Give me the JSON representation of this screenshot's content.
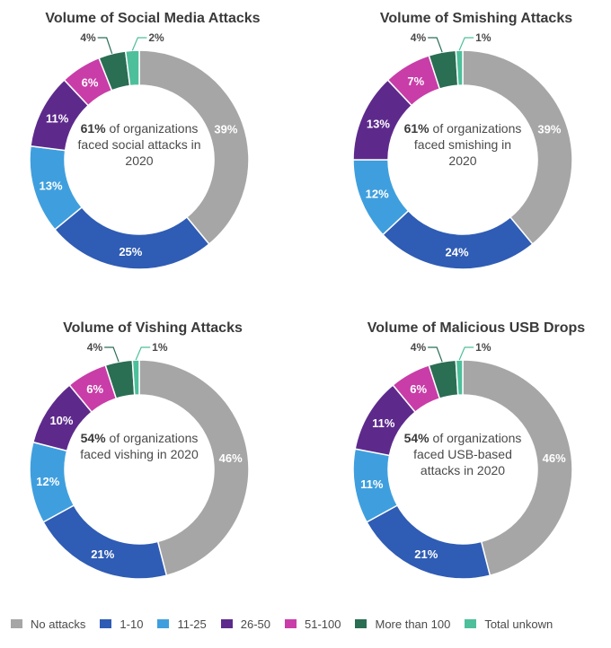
{
  "colors": {
    "No attacks": "#a6a6a6",
    "1-10": "#2f5cb4",
    "11-25": "#3f9fde",
    "26-50": "#5d2a8c",
    "51-100": "#c93da8",
    "More than 100": "#2a6e54",
    "Total unkown": "#4dbf9b"
  },
  "chart_data": [
    {
      "type": "pie",
      "title": "Volume of Social Media Attacks",
      "categories": [
        "No attacks",
        "1-10",
        "11-25",
        "26-50",
        "51-100",
        "More than 100",
        "Total unkown"
      ],
      "values": [
        39,
        25,
        13,
        11,
        6,
        4,
        2
      ],
      "labels": [
        "39%",
        "25%",
        "13%",
        "11%",
        "6%",
        "4%",
        "2%"
      ],
      "center": {
        "highlight": "61%",
        "rest": " of organizations faced social attacks in 2020"
      }
    },
    {
      "type": "pie",
      "title": "Volume of Smishing Attacks",
      "categories": [
        "No attacks",
        "1-10",
        "11-25",
        "26-50",
        "51-100",
        "More than 100",
        "Total unkown"
      ],
      "values": [
        39,
        24,
        12,
        13,
        7,
        4,
        1
      ],
      "labels": [
        "39%",
        "24%",
        "12%",
        "13%",
        "7%",
        "4%",
        "1%"
      ],
      "center": {
        "highlight": "61%",
        "rest": " of organizations faced smishing in 2020"
      }
    },
    {
      "type": "pie",
      "title": "Volume of Vishing Attacks",
      "categories": [
        "No attacks",
        "1-10",
        "11-25",
        "26-50",
        "51-100",
        "More than 100",
        "Total unkown"
      ],
      "values": [
        46,
        21,
        12,
        10,
        6,
        4,
        1
      ],
      "labels": [
        "46%",
        "21%",
        "12%",
        "10%",
        "6%",
        "4%",
        "1%"
      ],
      "center": {
        "highlight": "54%",
        "rest": " of organizations faced vishing in 2020"
      }
    },
    {
      "type": "pie",
      "title": "Volume of Malicious USB Drops",
      "categories": [
        "No attacks",
        "1-10",
        "11-25",
        "26-50",
        "51-100",
        "More than 100",
        "Total unkown"
      ],
      "values": [
        46,
        21,
        11,
        11,
        6,
        4,
        1
      ],
      "labels": [
        "46%",
        "21%",
        "11%",
        "11%",
        "6%",
        "4%",
        "1%"
      ],
      "center": {
        "highlight": "54%",
        "rest": " of organizations faced USB-based attacks in 2020"
      }
    }
  ],
  "legend": [
    "No attacks",
    "1-10",
    "11-25",
    "26-50",
    "51-100",
    "More than 100",
    "Total unkown"
  ]
}
